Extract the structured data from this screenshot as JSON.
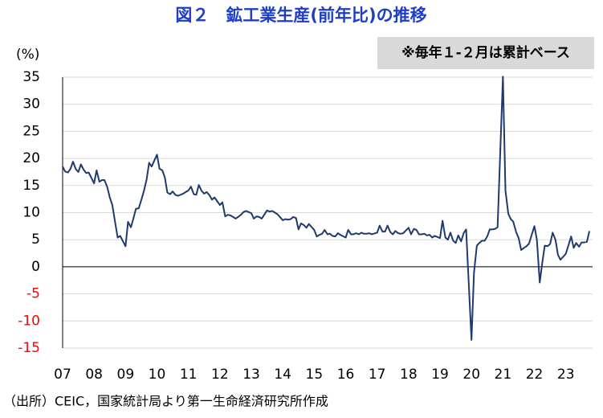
{
  "chart_data": {
    "type": "line",
    "title": "図２　鉱工業生産(前年比)の推移",
    "y_label": "(%)",
    "annotation": "※毎年１-２月は累計ベース",
    "source": "（出所）CEIC，国家統計局より第一生命経済研究所作成",
    "color": "#1f3a6e",
    "negative_tick_color": "#ff0000",
    "grid": true,
    "ylim": [
      -15,
      35
    ],
    "yticks": [
      -15,
      -10,
      -5,
      0,
      5,
      10,
      15,
      20,
      25,
      30,
      35
    ],
    "xlim": [
      2007,
      2023.85
    ],
    "xticks": [
      {
        "value": 2007,
        "label": "07"
      },
      {
        "value": 2008,
        "label": "08"
      },
      {
        "value": 2009,
        "label": "09"
      },
      {
        "value": 2010,
        "label": "10"
      },
      {
        "value": 2011,
        "label": "11"
      },
      {
        "value": 2012,
        "label": "12"
      },
      {
        "value": 2013,
        "label": "13"
      },
      {
        "value": 2014,
        "label": "14"
      },
      {
        "value": 2015,
        "label": "15"
      },
      {
        "value": 2016,
        "label": "16"
      },
      {
        "value": 2017,
        "label": "17"
      },
      {
        "value": 2018,
        "label": "18"
      },
      {
        "value": 2019,
        "label": "19"
      },
      {
        "value": 2020,
        "label": "20"
      },
      {
        "value": 2021,
        "label": "21"
      },
      {
        "value": 2022,
        "label": "22"
      },
      {
        "value": 2023,
        "label": "23"
      }
    ],
    "x": [
      2007,
      2007.08,
      2007.17,
      2007.25,
      2007.33,
      2007.42,
      2007.5,
      2007.58,
      2007.67,
      2007.75,
      2007.83,
      2008,
      2008.08,
      2008.17,
      2008.25,
      2008.33,
      2008.42,
      2008.5,
      2008.58,
      2008.67,
      2008.75,
      2008.83,
      2009,
      2009.08,
      2009.17,
      2009.25,
      2009.33,
      2009.42,
      2009.5,
      2009.58,
      2009.67,
      2009.75,
      2009.83,
      2010,
      2010.08,
      2010.17,
      2010.25,
      2010.33,
      2010.42,
      2010.5,
      2010.58,
      2010.67,
      2010.75,
      2010.83,
      2011,
      2011.08,
      2011.17,
      2011.25,
      2011.33,
      2011.42,
      2011.5,
      2011.58,
      2011.67,
      2011.75,
      2011.83,
      2012,
      2012.08,
      2012.17,
      2012.25,
      2012.33,
      2012.42,
      2012.5,
      2012.58,
      2012.67,
      2012.75,
      2012.83,
      2013,
      2013.08,
      2013.17,
      2013.25,
      2013.33,
      2013.42,
      2013.5,
      2013.58,
      2013.67,
      2013.75,
      2013.83,
      2014,
      2014.08,
      2014.17,
      2014.25,
      2014.33,
      2014.42,
      2014.5,
      2014.58,
      2014.67,
      2014.75,
      2014.83,
      2015,
      2015.08,
      2015.17,
      2015.25,
      2015.33,
      2015.42,
      2015.5,
      2015.58,
      2015.67,
      2015.75,
      2015.83,
      2016,
      2016.08,
      2016.17,
      2016.25,
      2016.33,
      2016.42,
      2016.5,
      2016.58,
      2016.67,
      2016.75,
      2016.83,
      2017,
      2017.08,
      2017.17,
      2017.25,
      2017.33,
      2017.42,
      2017.5,
      2017.58,
      2017.67,
      2017.75,
      2017.83,
      2018,
      2018.08,
      2018.17,
      2018.25,
      2018.33,
      2018.42,
      2018.5,
      2018.58,
      2018.67,
      2018.75,
      2018.83,
      2019,
      2019.08,
      2019.17,
      2019.25,
      2019.33,
      2019.42,
      2019.5,
      2019.58,
      2019.67,
      2019.75,
      2019.83,
      2020,
      2020.08,
      2020.17,
      2020.25,
      2020.33,
      2020.42,
      2020.5,
      2020.58,
      2020.67,
      2020.75,
      2020.83,
      2021,
      2021.08,
      2021.17,
      2021.25,
      2021.33,
      2021.42,
      2021.5,
      2021.58,
      2021.67,
      2021.75,
      2021.83,
      2022,
      2022.08,
      2022.17,
      2022.25,
      2022.33,
      2022.42,
      2022.5,
      2022.58,
      2022.67,
      2022.75,
      2022.83,
      2023,
      2023.08,
      2023.17,
      2023.25,
      2023.33,
      2023.42,
      2023.5,
      2023.58,
      2023.67,
      2023.75
    ],
    "values": [
      18.5,
      17.6,
      17.4,
      18.1,
      19.4,
      18.0,
      17.5,
      18.9,
      17.9,
      17.3,
      17.4,
      15.4,
      17.8,
      15.7,
      16.0,
      16.0,
      14.7,
      12.8,
      11.4,
      8.2,
      5.4,
      5.7,
      3.8,
      8.3,
      7.3,
      8.9,
      10.7,
      10.8,
      12.3,
      13.9,
      16.1,
      19.2,
      18.5,
      20.7,
      18.1,
      17.8,
      16.5,
      13.7,
      13.4,
      13.9,
      13.3,
      13.1,
      13.3,
      13.5,
      14.1,
      14.8,
      13.4,
      13.3,
      15.1,
      14.0,
      13.5,
      13.8,
      13.2,
      12.4,
      12.8,
      11.4,
      11.9,
      9.3,
      9.6,
      9.5,
      9.2,
      8.9,
      9.2,
      9.6,
      10.1,
      10.3,
      9.9,
      8.9,
      9.3,
      9.2,
      8.9,
      9.7,
      10.4,
      10.2,
      10.3,
      10.0,
      9.7,
      8.6,
      8.8,
      8.7,
      8.8,
      9.2,
      9.0,
      6.9,
      8.0,
      7.7,
      7.2,
      7.9,
      6.8,
      5.6,
      5.9,
      6.1,
      6.8,
      6.0,
      6.1,
      5.7,
      5.6,
      6.2,
      5.9,
      5.4,
      6.8,
      6.0,
      6.0,
      6.2,
      6.0,
      6.3,
      6.1,
      6.1,
      6.2,
      6.0,
      6.3,
      7.6,
      6.5,
      6.5,
      7.6,
      6.4,
      6.0,
      6.6,
      6.2,
      6.1,
      6.2,
      7.2,
      6.0,
      7.0,
      6.8,
      6.0,
      6.0,
      6.1,
      5.8,
      5.9,
      5.4,
      5.7,
      5.3,
      8.5,
      5.4,
      5.0,
      6.3,
      4.8,
      4.4,
      5.8,
      4.7,
      6.2,
      6.9,
      -13.5,
      -1.1,
      3.9,
      4.4,
      4.8,
      4.8,
      5.6,
      6.9,
      6.9,
      7.0,
      7.3,
      35.1,
      14.1,
      9.8,
      8.8,
      8.3,
      6.4,
      5.3,
      3.1,
      3.5,
      3.8,
      4.3,
      7.5,
      5.0,
      -2.9,
      0.7,
      3.9,
      3.8,
      4.2,
      6.3,
      5.0,
      2.2,
      1.3,
      2.4,
      3.9,
      5.6,
      3.5,
      4.4,
      3.7,
      4.5,
      4.5,
      4.6,
      6.6
    ]
  }
}
